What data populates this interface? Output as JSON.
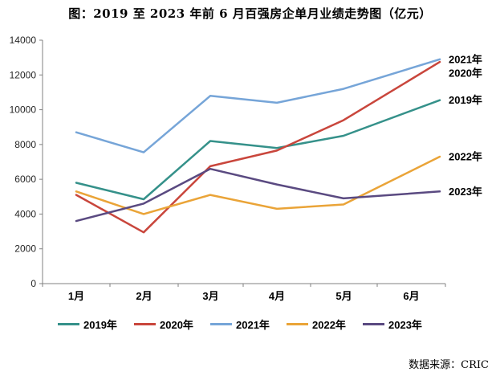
{
  "title": "图：2019 至 2023 年前 6 月百强房企单月业绩走势图（亿元）",
  "source_note": "数据来源：CRIC",
  "colors": {
    "axis": "#808080",
    "tick_text": "#262626",
    "label_text": "#000000"
  },
  "chart_data": {
    "type": "line",
    "title": "图：2019 至 2023 年前 6 月百强房企单月业绩走势图（亿元）",
    "unit": "亿元",
    "categories": [
      "1月",
      "2月",
      "3月",
      "4月",
      "5月",
      "6月"
    ],
    "series": [
      {
        "name": "2019年",
        "color": "#35918A",
        "values": [
          5800,
          4850,
          8200,
          7800,
          8500,
          10550
        ]
      },
      {
        "name": "2020年",
        "color": "#C9463C",
        "values": [
          5100,
          2950,
          6750,
          7650,
          9400,
          12750
        ]
      },
      {
        "name": "2021年",
        "color": "#76A5D8",
        "values": [
          8700,
          7550,
          10800,
          10400,
          11200,
          12900
        ]
      },
      {
        "name": "2022年",
        "color": "#EAA438",
        "values": [
          5300,
          4000,
          5100,
          4300,
          4550,
          7300
        ]
      },
      {
        "name": "2023年",
        "color": "#5A4A81",
        "values": [
          3600,
          4600,
          6600,
          5700,
          4900,
          5300
        ]
      }
    ],
    "ylim": [
      0,
      14000
    ],
    "ytick_step": 2000,
    "ytick_labels": [
      "0",
      "2000",
      "4000",
      "6000",
      "8000",
      "10000",
      "12000",
      "14000"
    ],
    "grid": false,
    "legend_position": "bottom",
    "end_labels": [
      "2021年",
      "2020年",
      "2019年",
      "2022年",
      "2023年"
    ],
    "legend_labels": [
      "2019年",
      "2020年",
      "2021年",
      "2022年",
      "2023年"
    ]
  }
}
